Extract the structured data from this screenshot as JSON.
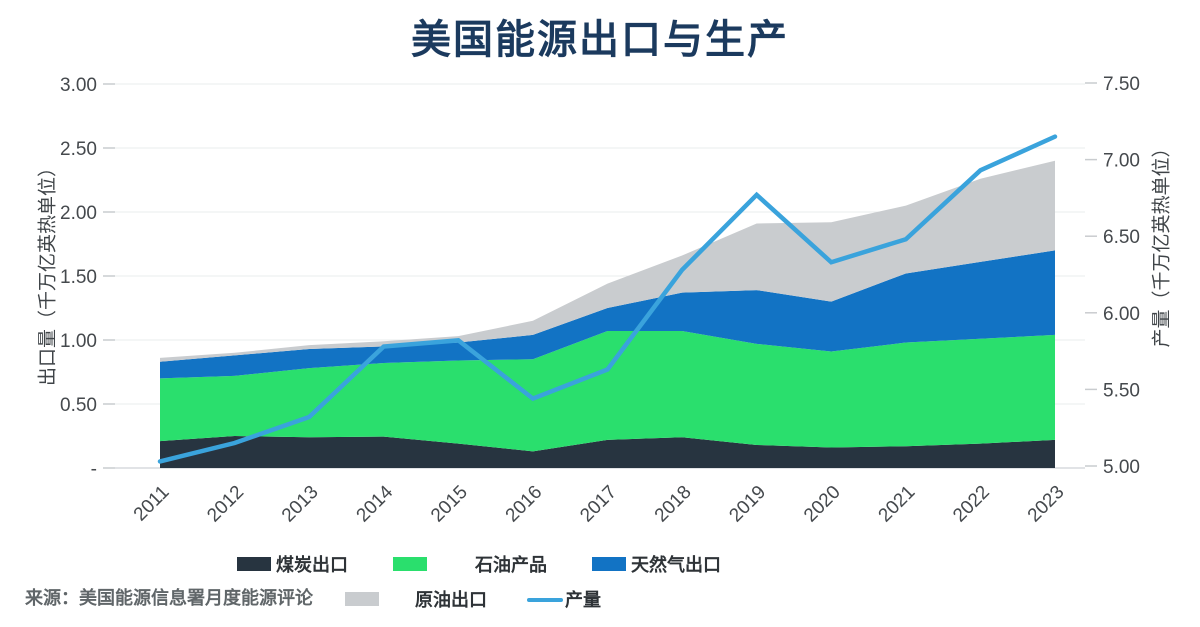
{
  "title": "美国能源出口与生产",
  "source": "来源：美国能源信息署月度能源评论",
  "axes": {
    "left_label": "出口量（千万亿英热单位）",
    "right_label": "产量（千万亿英热单位）"
  },
  "legend": {
    "coal": "煤炭出口",
    "petroleum": "石油产品",
    "natgas": "天然气出口",
    "crude": "原油出口",
    "production": "产量"
  },
  "colors": {
    "title": "#1b3a5e",
    "gridline": "#eaecee",
    "axis_line": "#d7dadd",
    "tick_text": "#45494d"
  },
  "chart_data": {
    "type": "area",
    "title": "美国能源出口与生产",
    "xlabel": "",
    "ylabel_left": "出口量（千万亿英热单位）",
    "ylabel_right": "产量（千万亿英热单位）",
    "grid": true,
    "legend_position": "bottom",
    "categories": [
      "2011",
      "2012",
      "2013",
      "2014",
      "2015",
      "2016",
      "2017",
      "2018",
      "2019",
      "2020",
      "2021",
      "2022",
      "2023"
    ],
    "series": [
      {
        "name": "煤炭出口",
        "type": "area-stacked",
        "axis": "left",
        "color": "#273440",
        "values": [
          0.21,
          0.25,
          0.24,
          0.245,
          0.19,
          0.13,
          0.22,
          0.24,
          0.18,
          0.16,
          0.17,
          0.19,
          0.22
        ]
      },
      {
        "name": "石油产品",
        "type": "area-stacked",
        "axis": "left",
        "color": "#2adf6d",
        "values": [
          0.49,
          0.47,
          0.54,
          0.575,
          0.65,
          0.72,
          0.85,
          0.83,
          0.79,
          0.75,
          0.81,
          0.82,
          0.82
        ]
      },
      {
        "name": "天然气出口",
        "type": "area-stacked",
        "axis": "left",
        "color": "#1273c4",
        "values": [
          0.13,
          0.16,
          0.15,
          0.13,
          0.14,
          0.19,
          0.18,
          0.3,
          0.42,
          0.39,
          0.54,
          0.6,
          0.66
        ]
      },
      {
        "name": "原油出口",
        "type": "area-stacked",
        "axis": "left",
        "color": "#c9cccf",
        "values": [
          0.03,
          0.02,
          0.03,
          0.04,
          0.05,
          0.11,
          0.19,
          0.29,
          0.52,
          0.62,
          0.53,
          0.65,
          0.7
        ]
      },
      {
        "name": "产量",
        "type": "line",
        "axis": "right",
        "color": "#3aa3dc",
        "values": [
          5.03,
          5.15,
          5.32,
          5.78,
          5.82,
          5.44,
          5.63,
          6.28,
          6.77,
          6.33,
          6.48,
          6.93,
          7.15
        ]
      }
    ],
    "left_axis": {
      "min": 0,
      "max": 3.0,
      "ticks": [
        3.0,
        2.5,
        2.0,
        1.5,
        1.0,
        0.5,
        0
      ],
      "tick_labels": [
        "3.00",
        "2.50",
        "2.00",
        "1.50",
        "1.00",
        "0.50",
        "-"
      ]
    },
    "right_axis": {
      "min": 5.0,
      "max": 7.5,
      "ticks": [
        7.5,
        7.0,
        6.5,
        6.0,
        5.5,
        5.0
      ],
      "tick_labels": [
        "7.50",
        "7.00",
        "6.50",
        "6.00",
        "5.50",
        "5.00"
      ]
    }
  }
}
